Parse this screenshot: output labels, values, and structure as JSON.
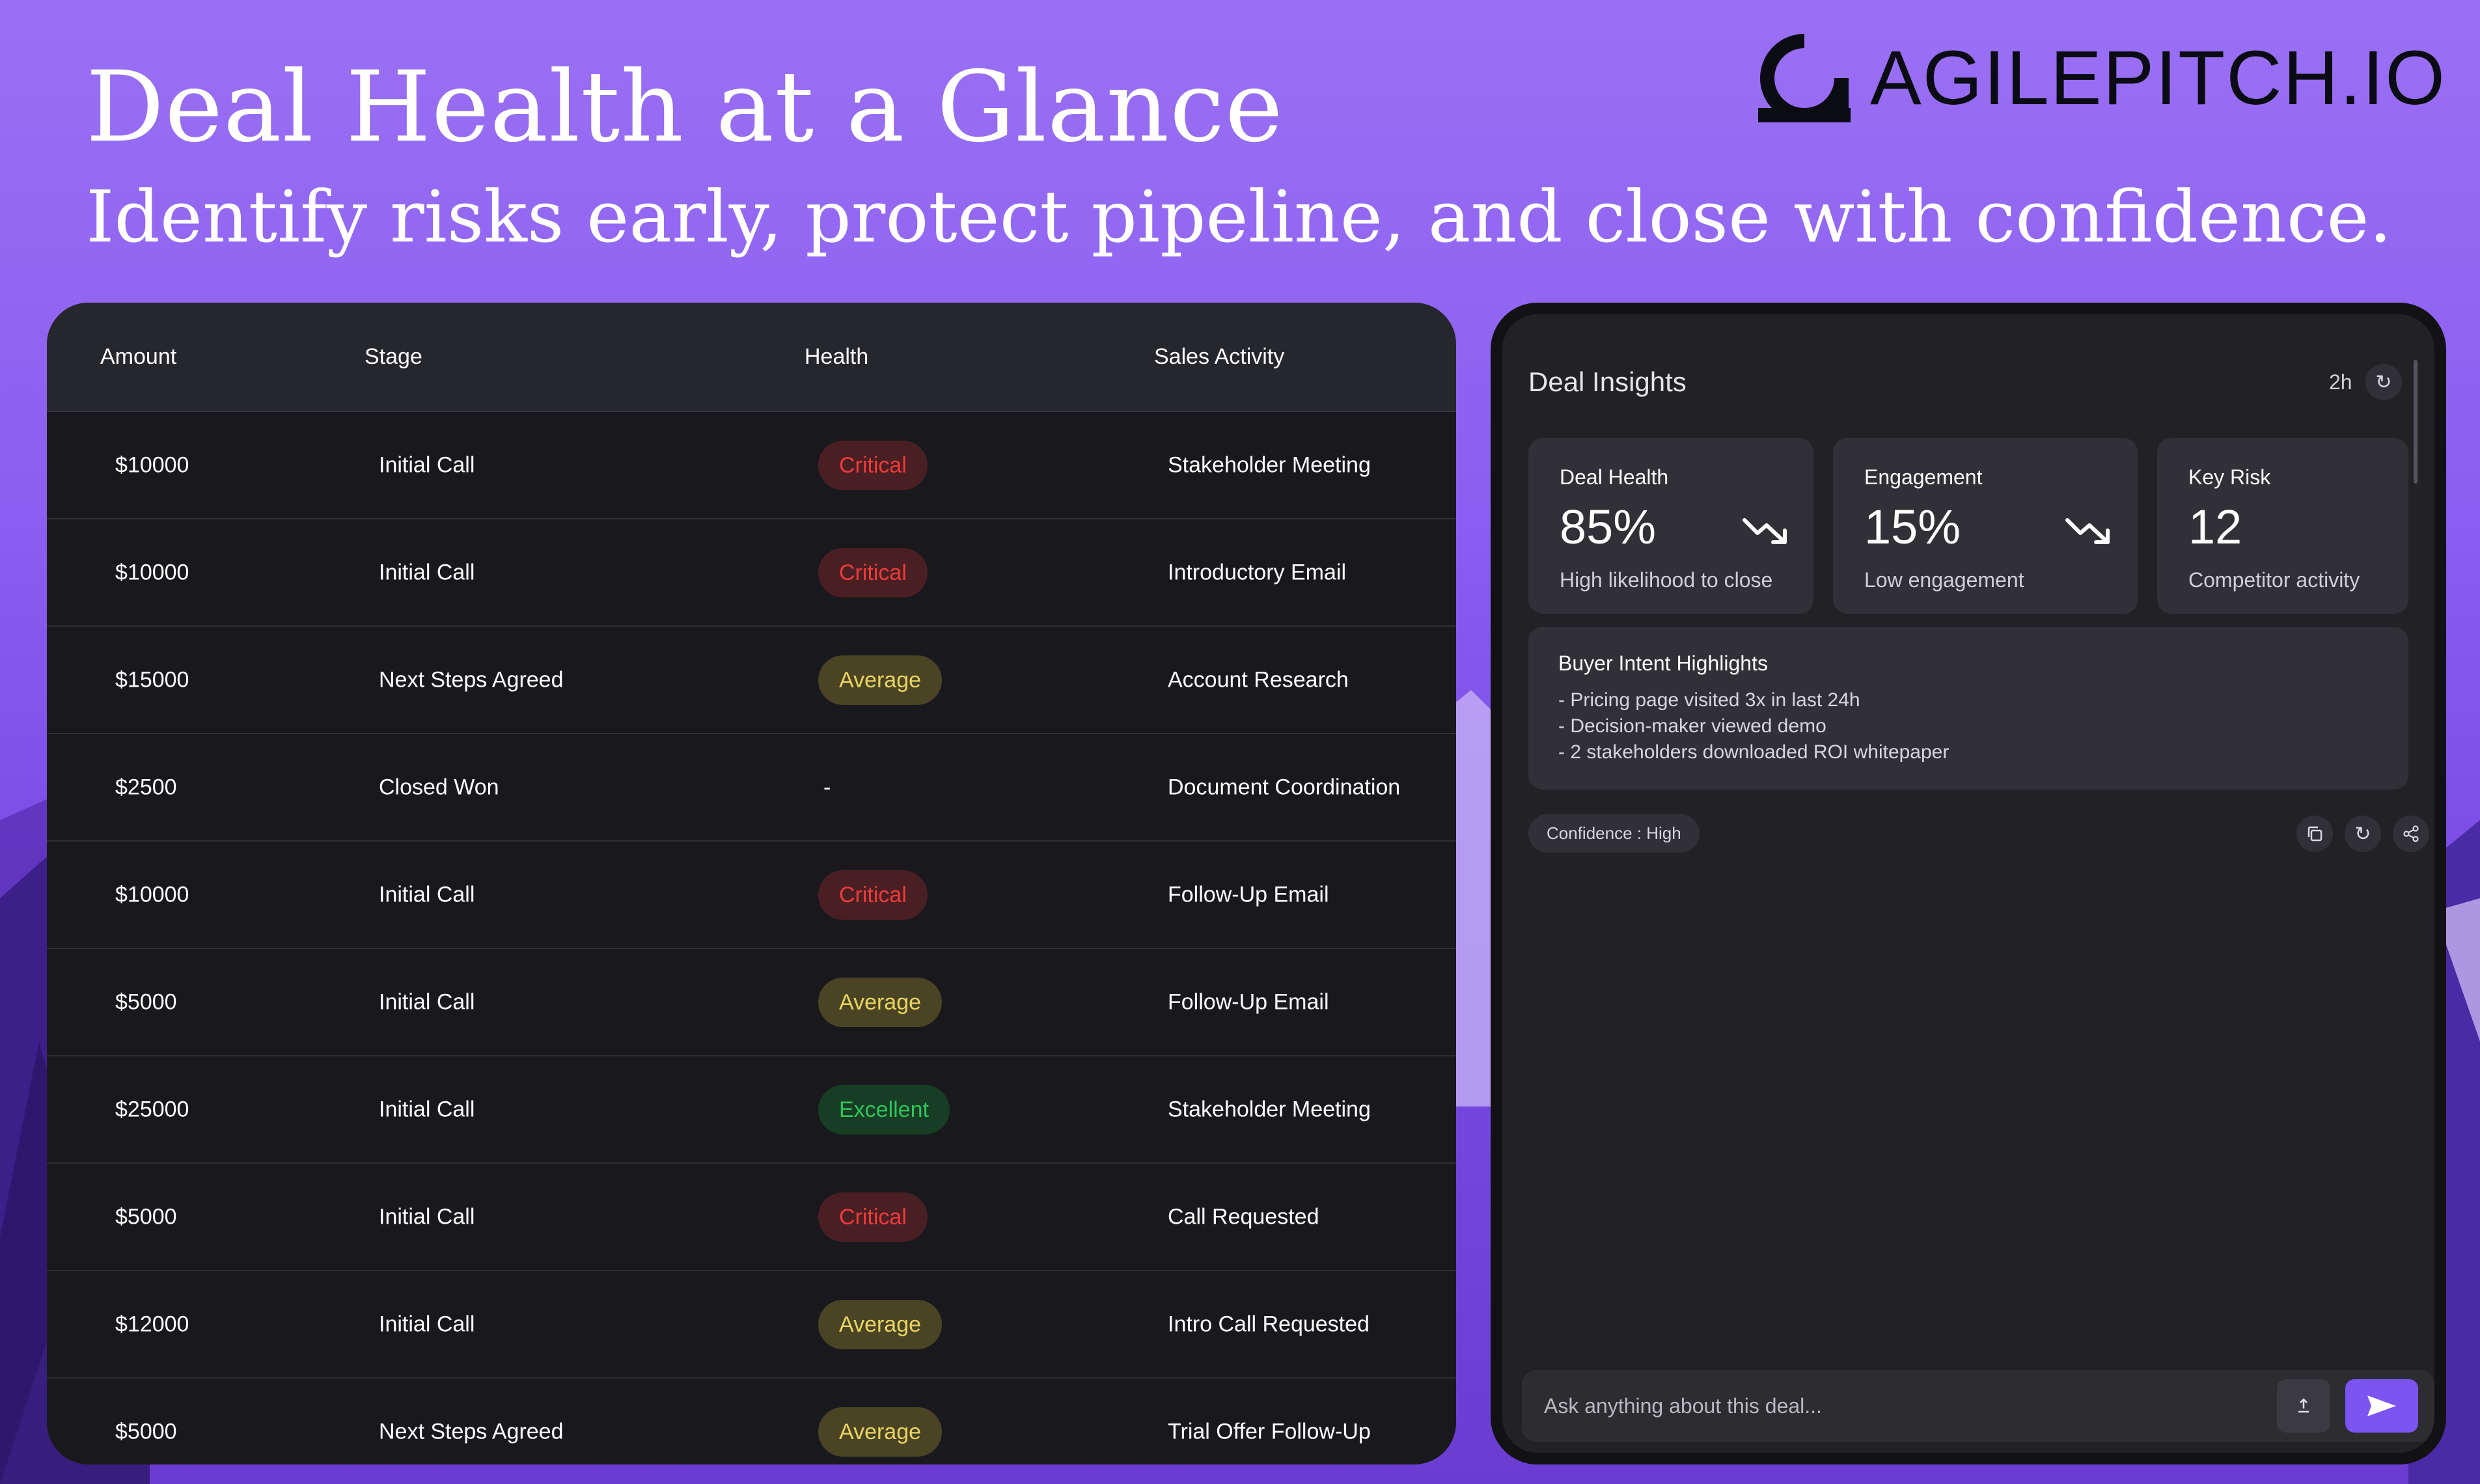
{
  "header": {
    "title": "Deal Health at a Glance",
    "subtitle": "Identify risks early, protect pipeline, and close with confidence.",
    "brand": "AGILEPITCH.IO"
  },
  "table": {
    "columns": [
      "Amount",
      "Stage",
      "Health",
      "Sales Activity"
    ],
    "rows": [
      {
        "amount": "$10000",
        "stage": "Initial Call",
        "health": "Critical",
        "activity": "Stakeholder Meeting"
      },
      {
        "amount": "$10000",
        "stage": "Initial Call",
        "health": "Critical",
        "activity": "Introductory Email"
      },
      {
        "amount": "$15000",
        "stage": "Next Steps Agreed",
        "health": "Average",
        "activity": "Account Research"
      },
      {
        "amount": "$2500",
        "stage": "Closed Won",
        "health": "-",
        "activity": "Document Coordination"
      },
      {
        "amount": "$10000",
        "stage": "Initial Call",
        "health": "Critical",
        "activity": "Follow-Up Email"
      },
      {
        "amount": "$5000",
        "stage": "Initial Call",
        "health": "Average",
        "activity": "Follow-Up Email"
      },
      {
        "amount": "$25000",
        "stage": "Initial Call",
        "health": "Excellent",
        "activity": "Stakeholder Meeting"
      },
      {
        "amount": "$5000",
        "stage": "Initial Call",
        "health": "Critical",
        "activity": "Call Requested"
      },
      {
        "amount": "$12000",
        "stage": "Initial Call",
        "health": "Average",
        "activity": "Intro Call Requested"
      },
      {
        "amount": "$5000",
        "stage": "Next Steps Agreed",
        "health": "Average",
        "activity": "Trial Offer Follow-Up"
      }
    ]
  },
  "insights": {
    "title": "Deal Insights",
    "time": "2h",
    "stats": [
      {
        "label": "Deal Health",
        "value": "85%",
        "sub": "High likelihood to close",
        "trend_icon": "trending-down-icon"
      },
      {
        "label": "Engagement",
        "value": "15%",
        "sub": "Low engagement",
        "trend_icon": "trending-down-icon"
      },
      {
        "label": "Key Risk",
        "value": "12",
        "sub": "Competitor activity"
      }
    ],
    "intent": {
      "title": "Buyer Intent Highlights",
      "lines": [
        "- Pricing page visited 3x in last 24h",
        "- Decision-maker viewed demo",
        "- 2 stakeholders downloaded ROI whitepaper"
      ]
    },
    "confidence": "Confidence : High",
    "ask_placeholder": "Ask anything about this deal..."
  },
  "colors": {
    "critical": "#ef3b3b",
    "average": "#e9d560",
    "excellent": "#2fc45b",
    "accent": "#7b54f2"
  }
}
